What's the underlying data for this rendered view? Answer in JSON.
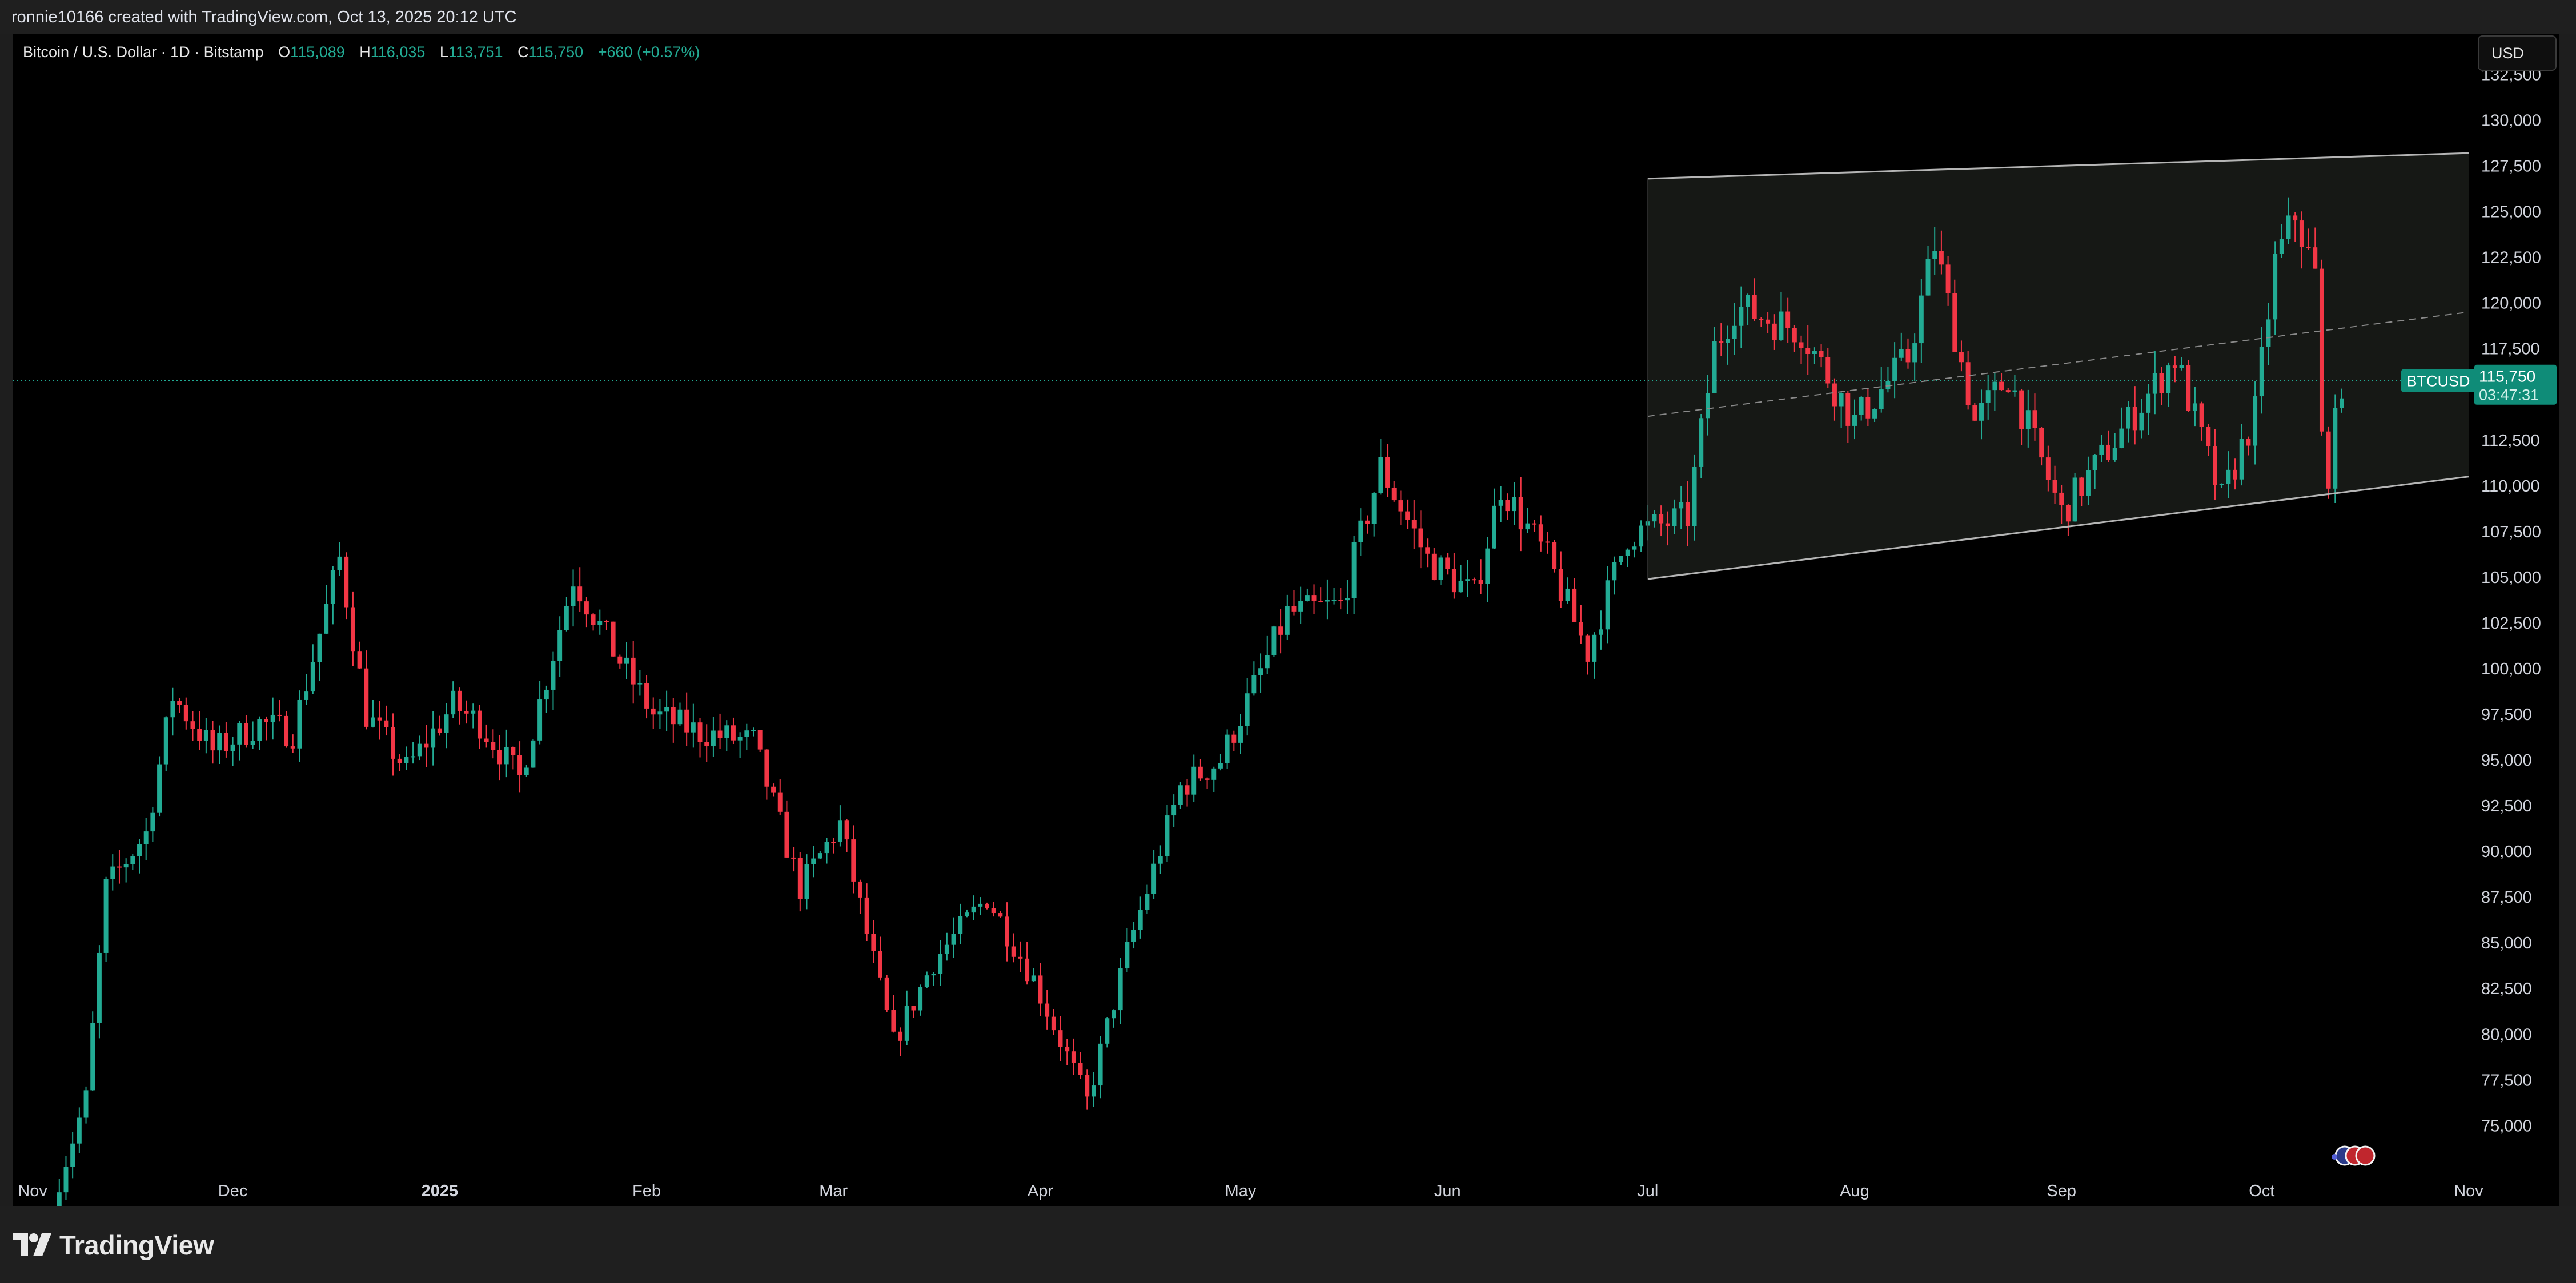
{
  "caption": "ronnie10166 created with TradingView.com, Oct 13, 2025 20:12 UTC",
  "legend": {
    "symbol": "Bitcoin / U.S. Dollar · 1D · Bitstamp",
    "open_label": "O",
    "open": "115,089",
    "high_label": "H",
    "high": "116,035",
    "low_label": "L",
    "low": "113,751",
    "close_label": "C",
    "close": "115,750",
    "change": "+660 (+0.57%)"
  },
  "currency_button": "USD",
  "price_tag": {
    "ticker": "BTCUSD",
    "price": "115,750",
    "countdown": "03:47:31"
  },
  "brand": "TradingView",
  "colors": {
    "up": "#22ab94",
    "down": "#f23645",
    "background": "#000000",
    "channel_line": "#b5b5b5"
  },
  "icons": [
    "tradingview-logo-icon",
    "event-flags-icon"
  ],
  "chart_data": {
    "type": "candlestick",
    "title": "Bitcoin / U.S. Dollar · 1D · Bitstamp",
    "y_axis_labels": [
      "132,500",
      "130,000",
      "127,500",
      "125,000",
      "122,500",
      "120,000",
      "117,500",
      "115,000",
      "112,500",
      "110,000",
      "107,500",
      "105,000",
      "102,500",
      "100,000",
      "97,500",
      "95,000",
      "92,500",
      "90,000",
      "87,500",
      "85,000",
      "82,500",
      "80,000",
      "77,500",
      "75,000"
    ],
    "y_ticks": [
      132500,
      130000,
      127500,
      125000,
      122500,
      120000,
      117500,
      115000,
      112500,
      110000,
      107500,
      105000,
      102500,
      100000,
      97500,
      95000,
      92500,
      90000,
      87500,
      85000,
      82500,
      80000,
      77500,
      75000
    ],
    "ylim": [
      72700,
      134700
    ],
    "x_axis_labels": [
      "Nov",
      "Dec",
      "2025",
      "Feb",
      "Mar",
      "Apr",
      "May",
      "Jun",
      "Jul",
      "Aug",
      "Sep",
      "Oct",
      "Nov"
    ],
    "x_ticks": [
      "2024-11-01",
      "2024-12-01",
      "2025-01-01",
      "2025-02-01",
      "2025-03-01",
      "2025-04-01",
      "2025-05-01",
      "2025-06-01",
      "2025-07-01",
      "2025-08-01",
      "2025-09-01",
      "2025-10-01",
      "2025-11-01"
    ],
    "xlim": [
      "2024-10-29",
      "2025-11-01"
    ],
    "current_price": 115750,
    "weekly_path": [
      {
        "date": "2024-11-05",
        "close": 72000
      },
      {
        "date": "2024-11-09",
        "close": 76500
      },
      {
        "date": "2024-11-12",
        "close": 88000
      },
      {
        "date": "2024-11-18",
        "close": 91000
      },
      {
        "date": "2024-11-22",
        "close": 98500
      },
      {
        "date": "2024-11-28",
        "close": 95500
      },
      {
        "date": "2024-12-05",
        "close": 97000
      },
      {
        "date": "2024-12-10",
        "close": 96500
      },
      {
        "date": "2024-12-17",
        "close": 106000
      },
      {
        "date": "2024-12-21",
        "close": 97500
      },
      {
        "date": "2024-12-27",
        "close": 94500
      },
      {
        "date": "2025-01-03",
        "close": 98000
      },
      {
        "date": "2025-01-07",
        "close": 97000
      },
      {
        "date": "2025-01-13",
        "close": 94000
      },
      {
        "date": "2025-01-21",
        "close": 105000
      },
      {
        "date": "2025-01-27",
        "close": 101000
      },
      {
        "date": "2025-02-02",
        "close": 97500
      },
      {
        "date": "2025-02-09",
        "close": 96500
      },
      {
        "date": "2025-02-17",
        "close": 96000
      },
      {
        "date": "2025-02-24",
        "close": 88000
      },
      {
        "date": "2025-03-02",
        "close": 91500
      },
      {
        "date": "2025-03-10",
        "close": 79500
      },
      {
        "date": "2025-03-16",
        "close": 84000
      },
      {
        "date": "2025-03-24",
        "close": 87500
      },
      {
        "date": "2025-03-31",
        "close": 83000
      },
      {
        "date": "2025-04-08",
        "close": 76300
      },
      {
        "date": "2025-04-14",
        "close": 84500
      },
      {
        "date": "2025-04-22",
        "close": 93500
      },
      {
        "date": "2025-04-28",
        "close": 95000
      },
      {
        "date": "2025-05-08",
        "close": 103000
      },
      {
        "date": "2025-05-16",
        "close": 103500
      },
      {
        "date": "2025-05-22",
        "close": 111000
      },
      {
        "date": "2025-05-29",
        "close": 106000
      },
      {
        "date": "2025-06-05",
        "close": 104000
      },
      {
        "date": "2025-06-09",
        "close": 110000
      },
      {
        "date": "2025-06-16",
        "close": 106000
      },
      {
        "date": "2025-06-22",
        "close": 100900
      },
      {
        "date": "2025-06-28",
        "close": 107300
      },
      {
        "date": "2025-07-07",
        "close": 108300
      },
      {
        "date": "2025-07-11",
        "close": 117500
      },
      {
        "date": "2025-07-14",
        "close": 119800
      },
      {
        "date": "2025-07-24",
        "close": 118500
      },
      {
        "date": "2025-08-01",
        "close": 113500
      },
      {
        "date": "2025-08-09",
        "close": 117000
      },
      {
        "date": "2025-08-13",
        "close": 123200
      },
      {
        "date": "2025-08-19",
        "close": 113500
      },
      {
        "date": "2025-08-24",
        "close": 116000
      },
      {
        "date": "2025-09-01",
        "close": 108500
      },
      {
        "date": "2025-09-08",
        "close": 112000
      },
      {
        "date": "2025-09-18",
        "close": 117000
      },
      {
        "date": "2025-09-25",
        "close": 109200
      },
      {
        "date": "2025-09-30",
        "close": 114000
      },
      {
        "date": "2025-10-03",
        "close": 122200
      },
      {
        "date": "2025-10-06",
        "close": 124800
      },
      {
        "date": "2025-10-09",
        "close": 121500
      },
      {
        "date": "2025-10-10",
        "close": 112500
      },
      {
        "date": "2025-10-11",
        "close": 110800
      },
      {
        "date": "2025-10-13",
        "close": 115750
      }
    ],
    "channel": {
      "start_date": "2025-07-01",
      "end_date": "2025-11-01",
      "upper_start": 126800,
      "upper_end": 128200,
      "lower_start": 104900,
      "lower_end": 110500,
      "mid_start": 113800,
      "mid_end": 119500
    }
  }
}
